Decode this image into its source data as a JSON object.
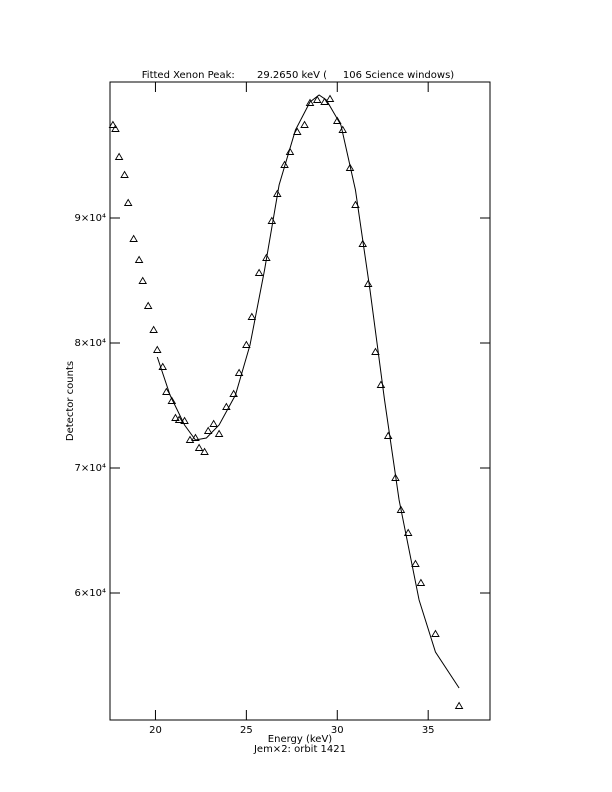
{
  "chart_data": {
    "type": "scatter",
    "title": "Fitted Xenon Peak:       29.2650 keV (     106 Science windows)",
    "x_label": "Energy (keV)",
    "y_label": "Detector counts",
    "subtitle": "Jem×2: orbit 1421",
    "xlim": [
      17.5,
      38.4
    ],
    "ylim": [
      49840,
      100880
    ],
    "xticks": [
      20,
      25,
      30,
      35
    ],
    "yticks": [
      {
        "value": 60000,
        "label": "6×10⁴"
      },
      {
        "value": 70000,
        "label": "7×10⁴"
      },
      {
        "value": 80000,
        "label": "8×10⁴"
      },
      {
        "value": 90000,
        "label": "9×10⁴"
      }
    ],
    "series": [
      {
        "name": "Data",
        "color": "#000000",
        "marker": "triangle",
        "x": [
          17.66,
          17.8,
          18.0,
          18.3,
          18.5,
          18.8,
          19.1,
          19.3,
          19.6,
          19.9,
          20.1,
          20.4,
          20.6,
          20.9,
          21.1,
          21.3,
          21.6,
          21.9,
          22.2,
          22.4,
          22.7,
          22.9,
          23.2,
          23.5,
          23.9,
          24.3,
          24.6,
          25.0,
          25.3,
          25.7,
          26.1,
          26.4,
          26.7,
          27.1,
          27.4,
          27.8,
          28.2,
          28.5,
          28.9,
          29.3,
          29.6,
          30.0,
          30.3,
          30.7,
          31.0,
          31.4,
          31.7,
          32.1,
          32.4,
          32.8,
          33.2,
          33.5,
          33.9,
          34.3,
          34.6,
          35.4,
          36.7
        ],
        "values": [
          97440,
          97120,
          94880,
          93440,
          91200,
          88320,
          86640,
          84960,
          82960,
          81040,
          79440,
          78080,
          76080,
          75360,
          74000,
          73840,
          73760,
          72240,
          72400,
          71600,
          71280,
          72960,
          73520,
          72720,
          74880,
          75920,
          77600,
          79840,
          82080,
          85600,
          86800,
          89760,
          91920,
          94240,
          95280,
          96880,
          97440,
          99200,
          99440,
          99280,
          99520,
          97760,
          97040,
          94000,
          91040,
          87920,
          84720,
          79280,
          76640,
          72560,
          69200,
          66640,
          64800,
          62320,
          60800,
          56720,
          50960
        ]
      },
      {
        "name": "Fit",
        "color": "#000000",
        "marker": "line",
        "x": [
          20.1,
          20.8,
          21.6,
          22.2,
          22.8,
          23.5,
          24.4,
          25.2,
          26.0,
          26.8,
          27.7,
          28.5,
          29.0,
          29.4,
          30.2,
          31.0,
          31.8,
          32.6,
          33.4,
          34.5,
          35.4,
          36.7
        ],
        "values": [
          78880,
          75840,
          73440,
          72240,
          72400,
          73440,
          75840,
          79840,
          85840,
          92640,
          97040,
          99280,
          99840,
          99440,
          97440,
          92240,
          84240,
          75440,
          67440,
          59440,
          55280,
          52400
        ]
      }
    ]
  }
}
